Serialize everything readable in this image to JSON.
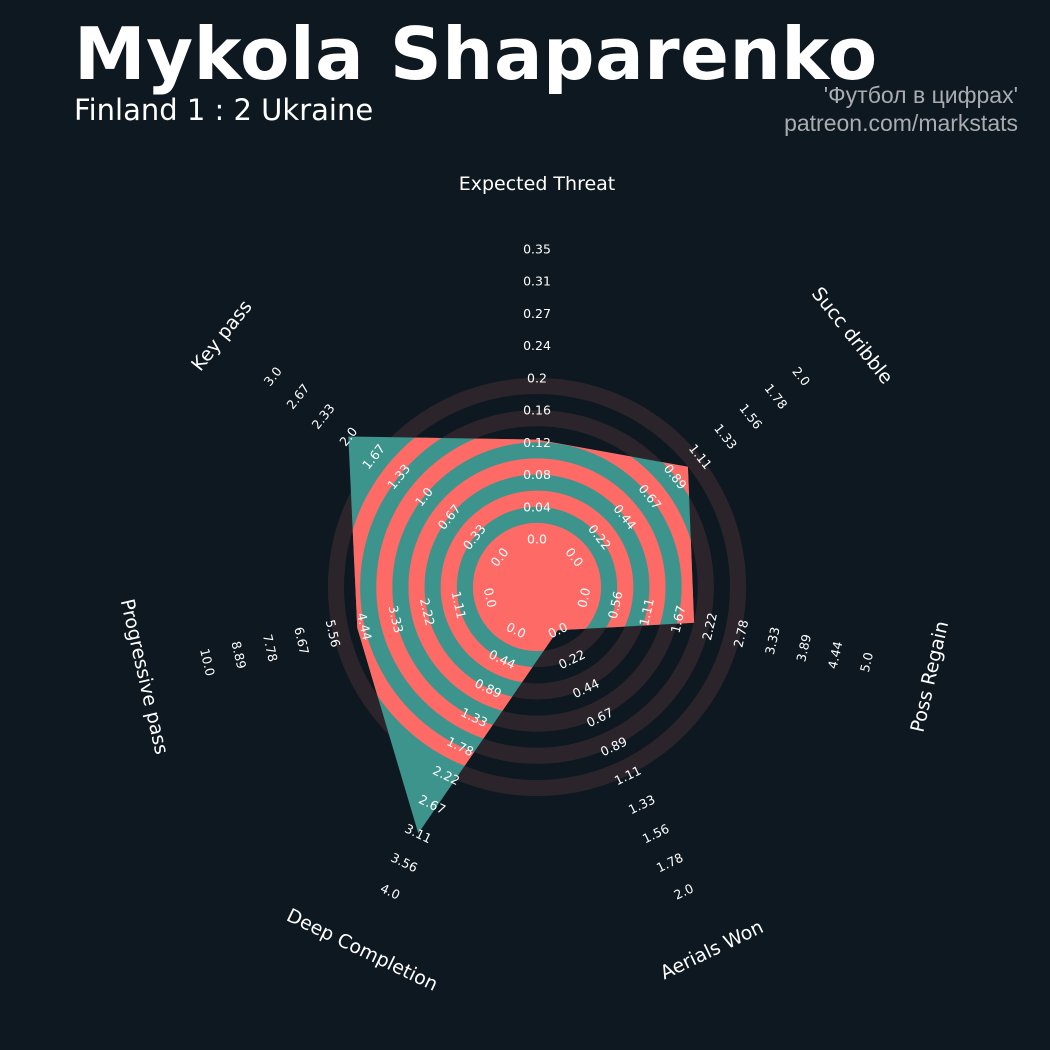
{
  "header": {
    "title": "Mykola Shaparenko",
    "subtitle": "Finland 1 : 2 Ukraine",
    "credit_line1": "'Футбол в цифрах'",
    "credit_line2": "patreon.com/markstats"
  },
  "colors": {
    "background": "#0e1820",
    "ring": "#2b252b",
    "radar_fill": "#3d948c",
    "radar_band": "#fe6b66",
    "text": "#ffffff",
    "credit": "#a9acb0"
  },
  "chart_data": {
    "type": "radar",
    "title": "Mykola Shaparenko",
    "subtitle": "Finland 1 : 2 Ukraine",
    "parameters": [
      {
        "name": "Expected Threat",
        "min": 0.0,
        "max": 0.35,
        "ticks": [
          "0.0",
          "0.04",
          "0.08",
          "0.12",
          "0.16",
          "0.2",
          "0.24",
          "0.27",
          "0.31",
          "0.35"
        ],
        "value": 0.12
      },
      {
        "name": "Succ dribble",
        "min": 0.0,
        "max": 2.0,
        "ticks": [
          "0.0",
          "0.22",
          "0.44",
          "0.67",
          "0.89",
          "1.11",
          "1.33",
          "1.56",
          "1.78",
          "2.0"
        ],
        "value": 1.0
      },
      {
        "name": "Poss Regain",
        "min": 0.0,
        "max": 5.0,
        "ticks": [
          "0.0",
          "0.56",
          "1.11",
          "1.67",
          "2.22",
          "2.78",
          "3.33",
          "3.89",
          "4.44",
          "5.0"
        ],
        "value": 1.95
      },
      {
        "name": "Aerials Won",
        "min": 0.0,
        "max": 2.0,
        "ticks": [
          "0.0",
          "0.22",
          "0.44",
          "0.67",
          "0.89",
          "1.11",
          "1.33",
          "1.56",
          "1.78",
          "2.0"
        ],
        "value": 0.0
      },
      {
        "name": "Deep Completion",
        "min": 0.0,
        "max": 4.0,
        "ticks": [
          "0.0",
          "0.44",
          "0.89",
          "1.33",
          "1.78",
          "2.22",
          "2.67",
          "3.11",
          "3.56",
          "4.0"
        ],
        "value": 3.11
      },
      {
        "name": "Progressive pass",
        "min": 0.0,
        "max": 10.0,
        "ticks": [
          "0.0",
          "1.11",
          "2.22",
          "3.33",
          "4.44",
          "5.56",
          "6.67",
          "7.78",
          "8.89",
          "10.0"
        ],
        "value": 4.7
      },
      {
        "name": "Key pass",
        "min": 0.0,
        "max": 3.0,
        "ticks": [
          "0.0",
          "0.33",
          "0.67",
          "1.0",
          "1.33",
          "1.67",
          "2.0",
          "2.33",
          "2.67",
          "3.0"
        ],
        "value": 2.0
      }
    ],
    "rings": 10,
    "grid": false,
    "legend": "none"
  }
}
